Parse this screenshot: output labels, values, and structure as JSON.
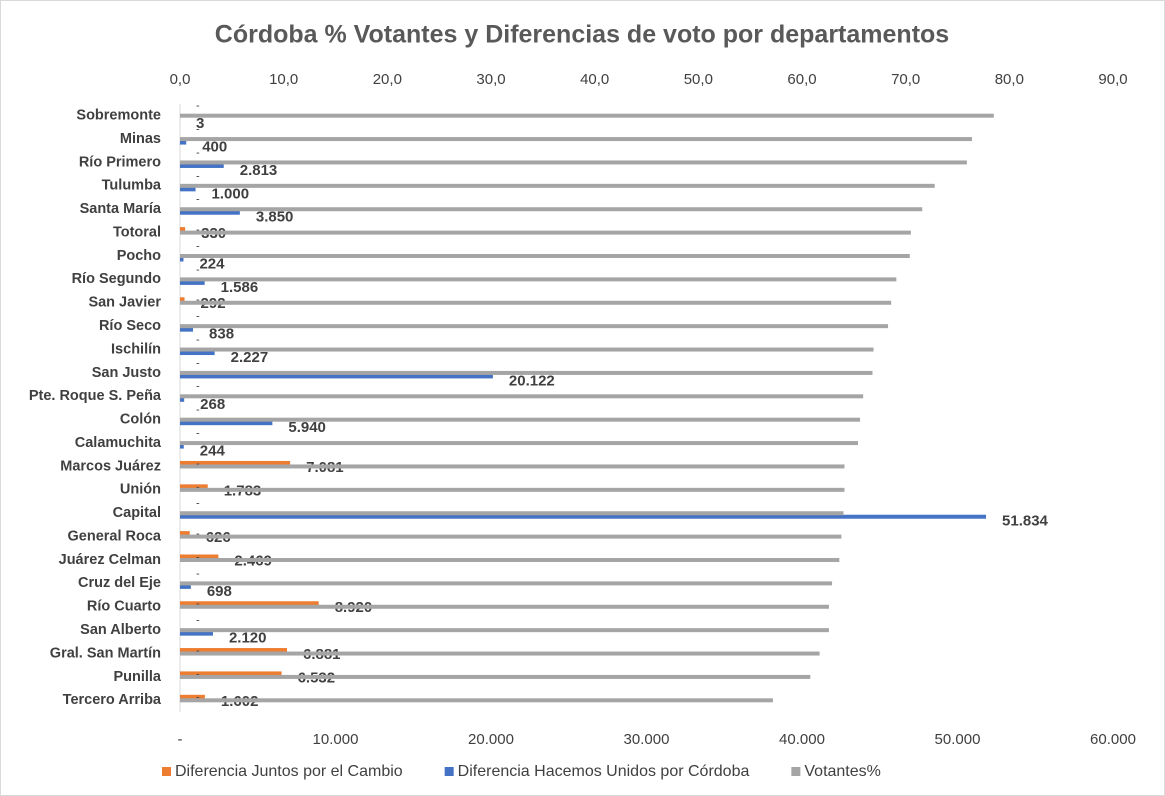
{
  "chart_data": {
    "type": "hbar",
    "title": "Córdoba % Votantes y Diferencias de voto por departamentos",
    "categories": [
      "Sobremonte",
      "Minas",
      "Río Primero",
      "Tulumba",
      "Santa María",
      "Totoral",
      "Pocho",
      "Río Segundo",
      "San Javier",
      "Río Seco",
      "Ischilín",
      "San Justo",
      "Pte. Roque S. Peña",
      "Colón",
      "Calamuchita",
      "Marcos Juárez",
      "Unión",
      "Capital",
      "General Roca",
      "Juárez Celman",
      "Cruz del Eje",
      "Río Cuarto",
      "San Alberto",
      "Gral. San Martín",
      "Punilla",
      "Tercero Arriba"
    ],
    "series": [
      {
        "name": "Diferencia Juntos por el Cambio",
        "color": "#ed7d31",
        "values": [
          0,
          0,
          0,
          0,
          0,
          330,
          0,
          0,
          292,
          0,
          0,
          0,
          0,
          0,
          0,
          7081,
          1783,
          0,
          626,
          2469,
          0,
          8920,
          0,
          6881,
          6532,
          1602
        ],
        "value_labels": [
          "-",
          "-",
          "-",
          "-",
          "-",
          "330",
          "-",
          "-",
          "292",
          "-",
          "-",
          "-",
          "-",
          "-",
          "-",
          "7.081",
          "1.783",
          "-",
          "626",
          "2.469",
          "-",
          "8.920",
          "-",
          "6.881",
          "6.532",
          "1.602"
        ]
      },
      {
        "name": "Diferencia Hacemos Unidos por Córdoba",
        "color": "#4472c4",
        "values": [
          3,
          400,
          2813,
          1000,
          3850,
          0,
          224,
          1586,
          0,
          838,
          2227,
          20122,
          268,
          5940,
          244,
          0,
          0,
          51834,
          0,
          0,
          698,
          0,
          2120,
          0,
          0,
          0
        ],
        "value_labels": [
          "3",
          "400",
          "2.813",
          "1.000",
          "3.850",
          "-",
          "224",
          "1.586",
          "-",
          "838",
          "2.227",
          "20.122",
          "268",
          "5.940",
          "244",
          "-",
          "-",
          "51.834",
          "-",
          "-",
          "698",
          "-",
          "2.120",
          "-",
          "-",
          "-"
        ]
      },
      {
        "name": "Votantes%",
        "color": "#a5a5a5",
        "axis": "x2",
        "values": [
          78.5,
          76.4,
          75.9,
          72.8,
          71.6,
          70.5,
          70.4,
          69.1,
          68.6,
          68.3,
          66.9,
          66.8,
          65.9,
          65.6,
          65.4,
          64.1,
          64.1,
          64.0,
          63.8,
          63.6,
          62.9,
          62.6,
          62.6,
          61.7,
          60.8,
          57.2
        ]
      }
    ],
    "xlim": [
      0,
      60000
    ],
    "xticks": [
      {
        "value": 0,
        "label": "-"
      },
      {
        "value": 10000,
        "label": "10.000"
      },
      {
        "value": 20000,
        "label": "20.000"
      },
      {
        "value": 30000,
        "label": "30.000"
      },
      {
        "value": 40000,
        "label": "40.000"
      },
      {
        "value": 50000,
        "label": "50.000"
      },
      {
        "value": 60000,
        "label": "60.000"
      }
    ],
    "x2lim": [
      0,
      90
    ],
    "x2ticks": [
      {
        "value": 0,
        "label": "0,0"
      },
      {
        "value": 10,
        "label": "10,0"
      },
      {
        "value": 20,
        "label": "20,0"
      },
      {
        "value": 30,
        "label": "30,0"
      },
      {
        "value": 40,
        "label": "40,0"
      },
      {
        "value": 50,
        "label": "50,0"
      },
      {
        "value": 60,
        "label": "60,0"
      },
      {
        "value": 70,
        "label": "70,0"
      },
      {
        "value": 80,
        "label": "80,0"
      },
      {
        "value": 90,
        "label": "90,0"
      }
    ],
    "legend": "bottom"
  }
}
